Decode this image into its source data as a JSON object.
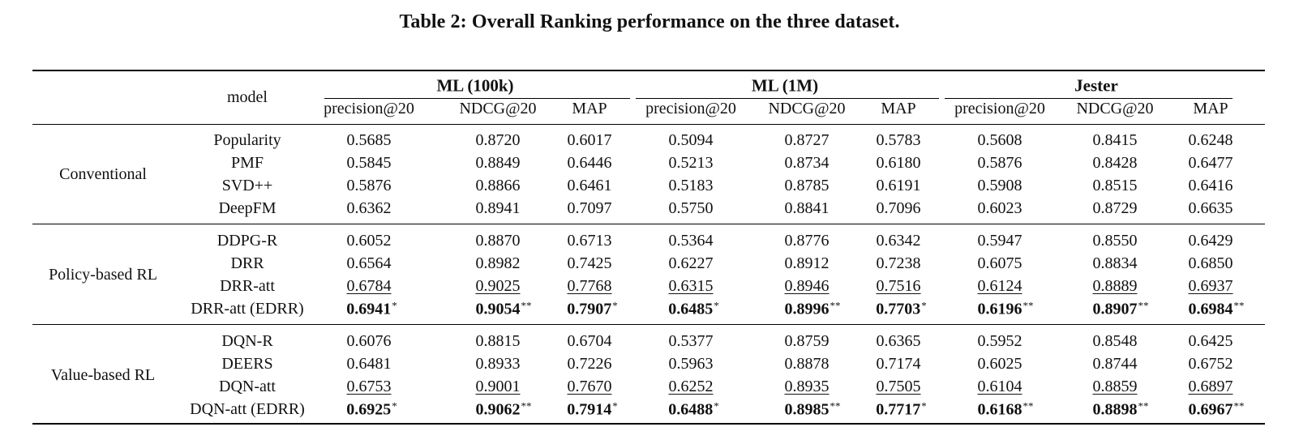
{
  "caption": "Table 2: Overall Ranking performance on the three dataset.",
  "header": {
    "model_label": "model",
    "groups": [
      "ML (100k)",
      "ML (1M)",
      "Jester"
    ],
    "metrics": [
      "precision@20",
      "NDCG@20",
      "MAP",
      "precision@20",
      "NDCG@20",
      "MAP",
      "precision@20",
      "NDCG@20",
      "MAP"
    ]
  },
  "sections": [
    {
      "name": "Conventional",
      "rows": [
        {
          "model": "Popularity",
          "values": [
            "0.5685",
            "0.8720",
            "0.6017",
            "0.5094",
            "0.8727",
            "0.5783",
            "0.5608",
            "0.8415",
            "0.6248"
          ],
          "marks": [
            "",
            "",
            "",
            "",
            "",
            "",
            "",
            "",
            ""
          ],
          "style": "plain"
        },
        {
          "model": "PMF",
          "values": [
            "0.5845",
            "0.8849",
            "0.6446",
            "0.5213",
            "0.8734",
            "0.6180",
            "0.5876",
            "0.8428",
            "0.6477"
          ],
          "marks": [
            "",
            "",
            "",
            "",
            "",
            "",
            "",
            "",
            ""
          ],
          "style": "plain"
        },
        {
          "model": "SVD++",
          "values": [
            "0.5876",
            "0.8866",
            "0.6461",
            "0.5183",
            "0.8785",
            "0.6191",
            "0.5908",
            "0.8515",
            "0.6416"
          ],
          "marks": [
            "",
            "",
            "",
            "",
            "",
            "",
            "",
            "",
            ""
          ],
          "style": "plain"
        },
        {
          "model": "DeepFM",
          "values": [
            "0.6362",
            "0.8941",
            "0.7097",
            "0.5750",
            "0.8841",
            "0.7096",
            "0.6023",
            "0.8729",
            "0.6635"
          ],
          "marks": [
            "",
            "",
            "",
            "",
            "",
            "",
            "",
            "",
            ""
          ],
          "style": "plain"
        }
      ]
    },
    {
      "name": "Policy-based RL",
      "rows": [
        {
          "model": "DDPG-R",
          "values": [
            "0.6052",
            "0.8870",
            "0.6713",
            "0.5364",
            "0.8776",
            "0.6342",
            "0.5947",
            "0.8550",
            "0.6429"
          ],
          "marks": [
            "",
            "",
            "",
            "",
            "",
            "",
            "",
            "",
            ""
          ],
          "style": "plain"
        },
        {
          "model": "DRR",
          "values": [
            "0.6564",
            "0.8982",
            "0.7425",
            "0.6227",
            "0.8912",
            "0.7238",
            "0.6075",
            "0.8834",
            "0.6850"
          ],
          "marks": [
            "",
            "",
            "",
            "",
            "",
            "",
            "",
            "",
            ""
          ],
          "style": "plain"
        },
        {
          "model": "DRR-att",
          "values": [
            "0.6784",
            "0.9025",
            "0.7768",
            "0.6315",
            "0.8946",
            "0.7516",
            "0.6124",
            "0.8889",
            "0.6937"
          ],
          "marks": [
            "",
            "",
            "",
            "",
            "",
            "",
            "",
            "",
            ""
          ],
          "style": "underline"
        },
        {
          "model": "DRR-att (EDRR)",
          "values": [
            "0.6941",
            "0.9054",
            "0.7907",
            "0.6485",
            "0.8996",
            "0.7703",
            "0.6196",
            "0.8907",
            "0.6984"
          ],
          "marks": [
            "*",
            "**",
            "*",
            "*",
            "**",
            "*",
            "**",
            "**",
            "**"
          ],
          "style": "bold"
        }
      ]
    },
    {
      "name": "Value-based RL",
      "rows": [
        {
          "model": "DQN-R",
          "values": [
            "0.6076",
            "0.8815",
            "0.6704",
            "0.5377",
            "0.8759",
            "0.6365",
            "0.5952",
            "0.8548",
            "0.6425"
          ],
          "marks": [
            "",
            "",
            "",
            "",
            "",
            "",
            "",
            "",
            ""
          ],
          "style": "plain"
        },
        {
          "model": "DEERS",
          "values": [
            "0.6481",
            "0.8933",
            "0.7226",
            "0.5963",
            "0.8878",
            "0.7174",
            "0.6025",
            "0.8744",
            "0.6752"
          ],
          "marks": [
            "",
            "",
            "",
            "",
            "",
            "",
            "",
            "",
            ""
          ],
          "style": "plain"
        },
        {
          "model": "DQN-att",
          "values": [
            "0.6753",
            "0.9001",
            "0.7670",
            "0.6252",
            "0.8935",
            "0.7505",
            "0.6104",
            "0.8859",
            "0.6897"
          ],
          "marks": [
            "",
            "",
            "",
            "",
            "",
            "",
            "",
            "",
            ""
          ],
          "style": "underline"
        },
        {
          "model": "DQN-att (EDRR)",
          "values": [
            "0.6925",
            "0.9062",
            "0.7914",
            "0.6488",
            "0.8985",
            "0.7717",
            "0.6168",
            "0.8898",
            "0.6967"
          ],
          "marks": [
            "*",
            "**",
            "*",
            "*",
            "**",
            "*",
            "**",
            "**",
            "**"
          ],
          "style": "bold"
        }
      ]
    }
  ]
}
